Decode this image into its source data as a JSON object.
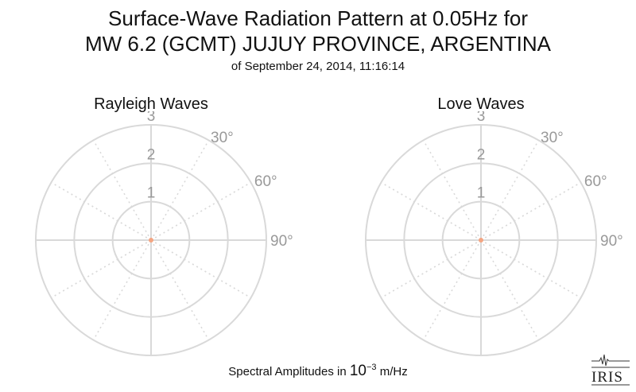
{
  "header": {
    "title_line1": "Surface-Wave Radiation Pattern at 0.05Hz for",
    "title_line2": "MW 6.2 (GCMT) JUJUY PROVINCE, ARGENTINA",
    "subtitle": "of September 24, 2014, 11:16:14"
  },
  "footer": {
    "label_prefix": "Spectral Amplitudes in ",
    "label_base": "10",
    "label_exponent": "−3",
    "label_unit": " m/Hz"
  },
  "logo": {
    "text": "IRIS"
  },
  "colors": {
    "ring": "#d9d9d9",
    "spoke": "#d9d9d9",
    "tick_label": "#999999",
    "data_point": "#f4a582"
  },
  "chart_data": [
    {
      "type": "scatter",
      "coordinate_system": "polar",
      "title": "Rayleigh Waves",
      "radial_ticks": [
        "1",
        "2",
        "3"
      ],
      "radial_range": [
        0,
        3
      ],
      "angular_ticks": [
        "30°",
        "60°",
        "90°"
      ],
      "angular_tick_values": [
        30,
        60,
        90
      ],
      "grid": true,
      "series": [
        {
          "r": [
            0
          ],
          "theta": [
            0
          ]
        }
      ]
    },
    {
      "type": "scatter",
      "coordinate_system": "polar",
      "title": "Love Waves",
      "radial_ticks": [
        "1",
        "2",
        "3"
      ],
      "radial_range": [
        0,
        3
      ],
      "angular_ticks": [
        "30°",
        "60°",
        "90°"
      ],
      "angular_tick_values": [
        30,
        60,
        90
      ],
      "grid": true,
      "series": [
        {
          "r": [
            0
          ],
          "theta": [
            0
          ]
        }
      ]
    }
  ]
}
